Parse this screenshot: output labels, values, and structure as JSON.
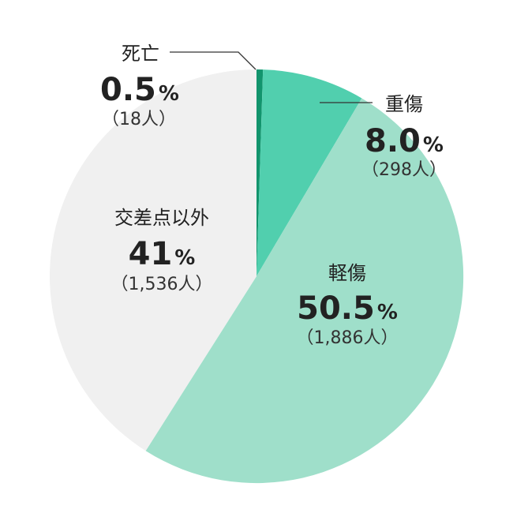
{
  "colors": {
    "death": "#12946d",
    "serious": "#51cfae",
    "minor": "#9fdfca",
    "non_intersection": "#f0f0f0"
  },
  "chart_data": {
    "type": "pie",
    "slices": [
      {
        "key": "death",
        "label": "死亡",
        "value": 0.5,
        "value_text": "0.5",
        "percent_sign": "%",
        "count_text": "（18人）"
      },
      {
        "key": "serious",
        "label": "重傷",
        "value": 8.0,
        "value_text": "8.0",
        "percent_sign": "%",
        "count_text": "（298人）"
      },
      {
        "key": "minor",
        "label": "軽傷",
        "value": 50.5,
        "value_text": "50.5",
        "percent_sign": "%",
        "count_text": "（1,886人）"
      },
      {
        "key": "non_intersection",
        "label": "交差点以外",
        "value": 41,
        "value_text": "41",
        "percent_sign": "%",
        "count_text": "（1,536人）"
      }
    ]
  }
}
